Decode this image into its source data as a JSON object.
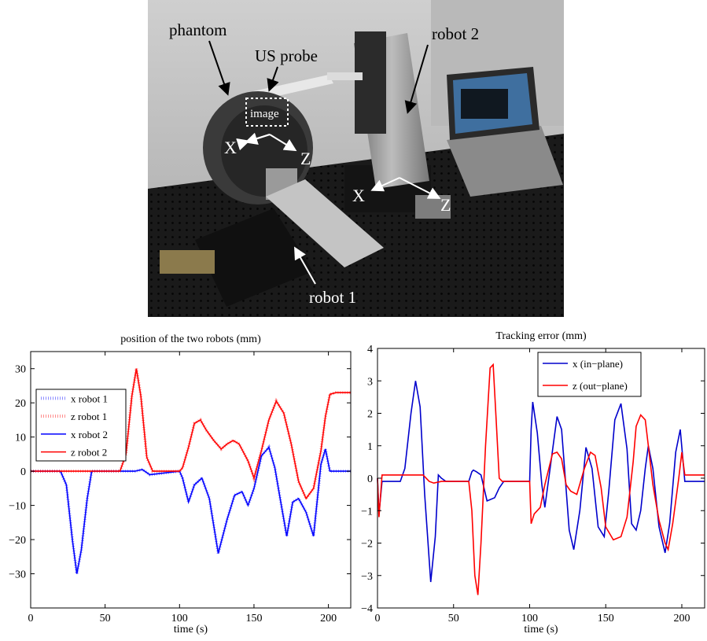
{
  "photo": {
    "labels": {
      "phantom": "phantom",
      "us_probe": "US probe",
      "image": "image",
      "robot2": "robot 2",
      "robot1": "robot 1",
      "x1": "X",
      "z1": "Z",
      "x2": "X",
      "z2": "Z"
    }
  },
  "chart_data": [
    {
      "type": "line",
      "title": "position of the two robots (mm)",
      "xlabel": "time (s)",
      "ylabel": "",
      "xlim": [
        0,
        215
      ],
      "ylim": [
        -40,
        35
      ],
      "xticks": [
        0,
        50,
        100,
        150,
        200
      ],
      "yticks": [
        -30,
        -20,
        -10,
        0,
        10,
        20,
        30
      ],
      "grid": false,
      "legend": "top-left",
      "colors": {
        "blue": "#0000ff",
        "red": "#ff0000"
      },
      "series": [
        {
          "name": "x robot 1",
          "color": "#4040ff",
          "style": "dotted",
          "x": [
            0,
            20,
            24,
            28,
            31,
            34,
            38,
            41,
            60,
            65,
            70,
            75,
            80,
            100,
            102,
            106,
            110,
            115,
            120,
            126,
            132,
            137,
            142,
            146,
            150,
            155,
            160,
            164,
            168,
            172,
            176,
            180,
            185,
            190,
            195,
            198,
            201,
            215
          ],
          "values": [
            0,
            0,
            -4,
            -20,
            -30,
            -23,
            -8,
            0,
            0,
            0,
            0,
            0.5,
            -1,
            0,
            -2,
            -9,
            -4,
            -2,
            -8,
            -24,
            -14,
            -7,
            -6,
            -10,
            -5,
            4.5,
            7,
            1,
            -9,
            -19,
            -9,
            -8,
            -12,
            -19,
            2,
            6.5,
            0,
            0
          ]
        },
        {
          "name": "z robot 1",
          "color": "#ff4040",
          "style": "dotted",
          "x": [
            0,
            20,
            40,
            60,
            64,
            68,
            71,
            74,
            78,
            82,
            100,
            102,
            106,
            110,
            114,
            118,
            123,
            128,
            132,
            136,
            140,
            146,
            150,
            155,
            160,
            165,
            170,
            175,
            180,
            185,
            190,
            195,
            198,
            201,
            205,
            215
          ],
          "values": [
            0,
            0,
            0,
            0,
            5,
            22,
            30,
            22,
            4,
            0,
            0,
            1,
            7,
            14,
            15,
            12,
            9,
            6.5,
            8,
            9,
            8,
            3,
            -2,
            6,
            15,
            20.5,
            17,
            8,
            -3,
            -8,
            -5,
            6,
            16,
            22.5,
            23,
            23
          ]
        },
        {
          "name": "x robot 2",
          "color": "#0000ff",
          "style": "solid",
          "x": [
            0,
            20,
            24,
            28,
            31,
            34,
            38,
            41,
            60,
            65,
            70,
            75,
            80,
            100,
            102,
            106,
            110,
            115,
            120,
            126,
            132,
            137,
            142,
            146,
            150,
            155,
            160,
            164,
            168,
            172,
            176,
            180,
            185,
            190,
            195,
            198,
            201,
            215
          ],
          "values": [
            0,
            0,
            -4,
            -20,
            -30,
            -23,
            -8,
            0,
            0,
            0,
            0,
            0.5,
            -1,
            0,
            -2,
            -9,
            -4,
            -2,
            -8,
            -24,
            -14,
            -7,
            -6,
            -10,
            -5,
            4.5,
            7,
            1,
            -9,
            -19,
            -9,
            -8,
            -12,
            -19,
            2,
            6.5,
            0,
            0
          ]
        },
        {
          "name": "z robot 2",
          "color": "#ff0000",
          "style": "solid",
          "x": [
            0,
            20,
            40,
            60,
            64,
            68,
            71,
            74,
            78,
            82,
            100,
            102,
            106,
            110,
            114,
            118,
            123,
            128,
            132,
            136,
            140,
            146,
            150,
            155,
            160,
            165,
            170,
            175,
            180,
            185,
            190,
            195,
            198,
            201,
            205,
            215
          ],
          "values": [
            0,
            0,
            0,
            0,
            5,
            22,
            30,
            22,
            4,
            0,
            0,
            1,
            7,
            14,
            15,
            12,
            9,
            6.5,
            8,
            9,
            8,
            3,
            -2,
            6,
            15,
            20.5,
            17,
            8,
            -3,
            -8,
            -5,
            6,
            16,
            22.5,
            23,
            23
          ]
        }
      ]
    },
    {
      "type": "line",
      "title": "Tracking error (mm)",
      "xlabel": "time (s)",
      "ylabel": "",
      "xlim": [
        0,
        215
      ],
      "ylim": [
        -4,
        4
      ],
      "xticks": [
        0,
        50,
        100,
        150,
        200
      ],
      "yticks": [
        -4,
        -3,
        -2,
        -1,
        0,
        1,
        2,
        3,
        4
      ],
      "grid": false,
      "legend": "top-center",
      "series": [
        {
          "name": "x (in−plane)",
          "color": "#0000cc",
          "style": "solid",
          "x": [
            0,
            1,
            3,
            15,
            18,
            22,
            25,
            28,
            31,
            35,
            38,
            40,
            42,
            45,
            60,
            62,
            63,
            65,
            68,
            72,
            77,
            80,
            83,
            100,
            101,
            102,
            105,
            108,
            110,
            114,
            118,
            121,
            126,
            129,
            133,
            137,
            141,
            145,
            149,
            152,
            156,
            160,
            164,
            167,
            170,
            173,
            176,
            178,
            181,
            185,
            189,
            192,
            196,
            199,
            202,
            205,
            215
          ],
          "values": [
            0,
            -1.1,
            -0.1,
            -0.1,
            0.3,
            2.0,
            3.0,
            2.2,
            -0.5,
            -3.2,
            -1.8,
            0.1,
            0.0,
            -0.1,
            -0.1,
            0.2,
            0.25,
            0.2,
            0.1,
            -0.7,
            -0.6,
            -0.3,
            -0.1,
            -0.1,
            1.5,
            2.35,
            1.4,
            -0.2,
            -0.9,
            0.5,
            1.9,
            1.5,
            -1.6,
            -2.2,
            -1.0,
            0.95,
            0.3,
            -1.5,
            -1.8,
            -0.4,
            1.8,
            2.3,
            0.9,
            -1.4,
            -1.6,
            -1.0,
            0.3,
            1.0,
            0.3,
            -1.5,
            -2.3,
            -1.4,
            0.8,
            1.5,
            -0.1,
            -0.1,
            -0.1
          ]
        },
        {
          "name": "z (out−plane)",
          "color": "#ff0000",
          "style": "solid",
          "x": [
            0,
            1,
            3,
            30,
            34,
            37,
            42,
            60,
            62,
            64,
            66,
            68,
            71,
            74,
            76,
            78,
            80,
            82,
            100,
            101,
            103,
            107,
            110,
            115,
            118,
            121,
            124,
            127,
            131,
            136,
            140,
            143,
            147,
            150,
            155,
            160,
            164,
            168,
            170,
            173,
            176,
            178,
            181,
            185,
            189,
            191,
            194,
            198,
            200,
            202,
            215
          ],
          "values": [
            0,
            -1.2,
            0.1,
            0.1,
            -0.1,
            -0.15,
            -0.1,
            -0.1,
            -1.0,
            -3.0,
            -3.6,
            -2.0,
            1.0,
            3.4,
            3.5,
            1.8,
            0.0,
            -0.1,
            -0.1,
            -1.4,
            -1.1,
            -0.9,
            -0.2,
            0.75,
            0.8,
            0.6,
            -0.2,
            -0.4,
            -0.5,
            0.3,
            0.8,
            0.7,
            -0.3,
            -1.5,
            -1.9,
            -1.8,
            -1.2,
            0.5,
            1.6,
            1.95,
            1.8,
            1.0,
            -0.2,
            -1.3,
            -2.0,
            -2.2,
            -1.4,
            0.0,
            0.8,
            0.1,
            0.1
          ]
        }
      ]
    }
  ]
}
